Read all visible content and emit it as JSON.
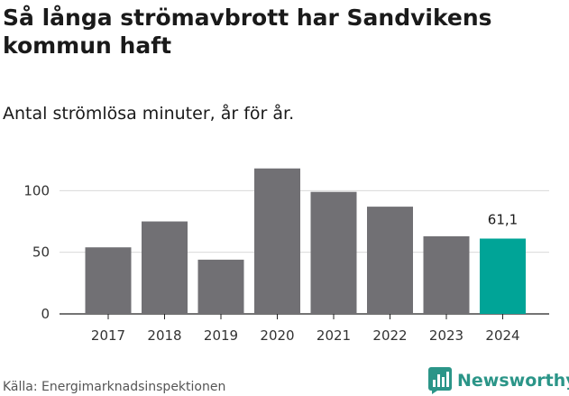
{
  "title": "Så långa strömavbrott har Sandvikens kommun haft",
  "subtitle": "Antal strömlösa minuter, år för år.",
  "source": "Källa: Energimarknadsinspektionen",
  "brand": {
    "name": "Newsworthy",
    "icon": "newsworthy-chart-icon",
    "color": "#2b9588"
  },
  "colors": {
    "bar": "#717074",
    "highlight": "#00a497",
    "grid": "#d9d9d9",
    "axis": "#222222"
  },
  "chart_data": {
    "type": "bar",
    "title": "Så långa strömavbrott har Sandvikens kommun haft",
    "subtitle": "Antal strömlösa minuter, år för år.",
    "xlabel": "",
    "ylabel": "",
    "categories": [
      "2017",
      "2018",
      "2019",
      "2020",
      "2021",
      "2022",
      "2023",
      "2024"
    ],
    "values": [
      54,
      75,
      44,
      118,
      99,
      87,
      63,
      61.1
    ],
    "highlight_index": 7,
    "data_labels": [
      {
        "index": 7,
        "text": "61,1"
      }
    ],
    "yticks": [
      0,
      50,
      100
    ],
    "ylim": [
      0,
      120
    ],
    "grid": true
  }
}
